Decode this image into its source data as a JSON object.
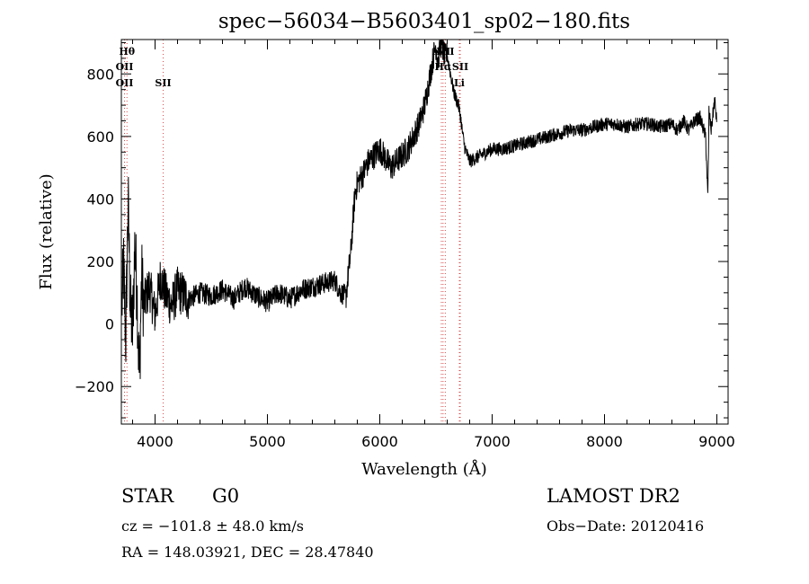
{
  "chart_data": {
    "type": "line",
    "title": "spec−56034−B5603401_sp02−180.fits",
    "xlabel": "Wavelength (Å)",
    "ylabel": "Flux (relative)",
    "xlim": [
      3700,
      9100
    ],
    "ylim": [
      -320,
      910
    ],
    "x_ticks": [
      4000,
      5000,
      6000,
      7000,
      8000,
      9000
    ],
    "y_ticks": [
      -200,
      0,
      200,
      400,
      600,
      800
    ],
    "y_tick_labels": [
      "−200",
      "0",
      "200",
      "400",
      "600",
      "800"
    ],
    "grid": false,
    "series": [
      {
        "color": "#000000",
        "x": [
          3700,
          3720,
          3740,
          3760,
          3780,
          3800,
          3820,
          3840,
          3860,
          3880,
          3900,
          3950,
          4000,
          4050,
          4100,
          4150,
          4200,
          4300,
          4400,
          4500,
          4600,
          4700,
          4800,
          4900,
          5000,
          5100,
          5200,
          5300,
          5400,
          5500,
          5600,
          5650,
          5700,
          5720,
          5740,
          5760,
          5780,
          5800,
          5850,
          5900,
          6000,
          6100,
          6200,
          6250,
          6300,
          6350,
          6400,
          6450,
          6480,
          6500,
          6520,
          6540,
          6560,
          6580,
          6600,
          6620,
          6640,
          6660,
          6680,
          6700,
          6720,
          6740,
          6760,
          6780,
          6800,
          6850,
          6900,
          7000,
          7100,
          7200,
          7300,
          7400,
          7500,
          7600,
          7700,
          7800,
          7900,
          8000,
          8100,
          8200,
          8300,
          8400,
          8500,
          8600,
          8650,
          8700,
          8750,
          8800,
          8850,
          8900,
          8920,
          8930,
          8950,
          8980,
          9000
        ],
        "values": [
          20,
          180,
          -50,
          400,
          50,
          -20,
          250,
          100,
          -180,
          150,
          60,
          120,
          30,
          150,
          90,
          60,
          110,
          80,
          100,
          90,
          110,
          80,
          120,
          90,
          70,
          100,
          80,
          110,
          120,
          130,
          140,
          100,
          90,
          160,
          220,
          320,
          420,
          450,
          480,
          520,
          560,
          500,
          540,
          560,
          600,
          640,
          700,
          800,
          860,
          890,
          840,
          900,
          880,
          850,
          860,
          820,
          780,
          740,
          720,
          700,
          660,
          600,
          560,
          540,
          520,
          530,
          540,
          560,
          560,
          570,
          580,
          590,
          600,
          610,
          620,
          620,
          630,
          640,
          640,
          630,
          640,
          640,
          630,
          640,
          620,
          650,
          620,
          650,
          660,
          600,
          400,
          680,
          620,
          720,
          640
        ]
      }
    ],
    "line_labels": [
      {
        "x": 3750,
        "text": "Hθ",
        "row": 0
      },
      {
        "x": 3728,
        "text": "OII",
        "row": 1
      },
      {
        "x": 3728,
        "text": "OII",
        "row": 2
      },
      {
        "x": 4072,
        "text": "SII",
        "row": 2
      },
      {
        "x": 6548,
        "text": "NII",
        "row": 0
      },
      {
        "x": 6583,
        "text": "NII",
        "row": 0
      },
      {
        "x": 6563,
        "text": "Hα",
        "row": 1
      },
      {
        "x": 6716,
        "text": "SII",
        "row": 1
      },
      {
        "x": 6708,
        "text": "Li",
        "row": 2
      }
    ],
    "line_marks": [
      3728,
      3750,
      4072,
      6548,
      6563,
      6583,
      6708,
      6716
    ],
    "line_mark_color": "#d65050"
  },
  "footer": {
    "object_class": "STAR",
    "subclass": "G0",
    "cz": "cz = −101.8 ± 48.0 km/s",
    "coords": "RA = 148.03921, DEC =  28.47840",
    "survey": "LAMOST DR2",
    "obs_date": "Obs−Date: 20120416"
  }
}
